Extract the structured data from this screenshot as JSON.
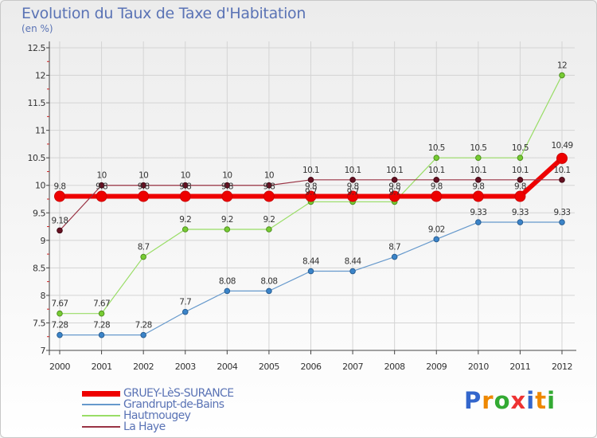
{
  "chart_data": {
    "type": "line",
    "title": "Evolution du Taux de Taxe d'Habitation",
    "unit_label": "(en %)",
    "x": [
      "2000",
      "2001",
      "2002",
      "2003",
      "2004",
      "2005",
      "2006",
      "2007",
      "2008",
      "2009",
      "2010",
      "2011",
      "2012"
    ],
    "ylim": [
      7,
      12.5
    ],
    "yticks": [
      "7",
      "7.5",
      "8",
      "8.5",
      "9",
      "9.5",
      "10",
      "10.5",
      "11",
      "11.5",
      "12",
      "12.5"
    ],
    "series": [
      {
        "name": "GRUEY-LèS-SURANCE",
        "color": "#ee0000",
        "values": [
          9.8,
          9.8,
          9.8,
          9.8,
          9.8,
          9.8,
          9.8,
          9.8,
          9.8,
          9.8,
          9.8,
          9.8,
          10.49
        ],
        "labels": [
          "9.8",
          "9.8",
          "9.8",
          "9.8",
          "9.8",
          "9.8",
          "9.8",
          "9.8",
          "9.8",
          "9.8",
          "9.8",
          "9.8",
          "10.49"
        ]
      },
      {
        "name": "Grandrupt-de-Bains",
        "color": "#6699cc",
        "values": [
          7.28,
          7.28,
          7.28,
          7.7,
          8.08,
          8.08,
          8.44,
          8.44,
          8.7,
          9.02,
          9.33,
          9.33,
          9.33
        ],
        "labels": [
          "7.28",
          "7.28",
          "7.28",
          "7.7",
          "8.08",
          "8.08",
          "8.44",
          "8.44",
          "8.7",
          "9.02",
          "9.33",
          "9.33",
          "9.33"
        ]
      },
      {
        "name": "Hautmougey",
        "color": "#99dd66",
        "values": [
          7.67,
          7.67,
          8.7,
          9.2,
          9.2,
          9.2,
          9.7,
          9.7,
          9.7,
          10.5,
          10.5,
          10.5,
          12
        ],
        "labels": [
          "7.67",
          "7.67",
          "8.7",
          "9.2",
          "9.2",
          "9.2",
          "9.7",
          "9.7",
          "9.7",
          "10.5",
          "10.5",
          "10.5",
          "12"
        ]
      },
      {
        "name": "La Haye",
        "color": "#993344",
        "values": [
          9.18,
          10,
          10,
          10,
          10,
          10,
          10.1,
          10.1,
          10.1,
          10.1,
          10.1,
          10.1,
          10.1
        ],
        "labels": [
          "9.18",
          "10",
          "10",
          "10",
          "10",
          "10",
          "10.1",
          "10.1",
          "10.1",
          "10.1",
          "10.1",
          "10.1",
          "10.1"
        ]
      }
    ],
    "legend_position": "bottom-left"
  },
  "logo": {
    "letters": [
      "P",
      "r",
      "o",
      "x",
      "i",
      "t",
      "i"
    ],
    "colors": [
      "#3366cc",
      "#ee8800",
      "#33aa33",
      "#ee3333",
      "#3366cc",
      "#ee8800",
      "#33aa33"
    ]
  }
}
